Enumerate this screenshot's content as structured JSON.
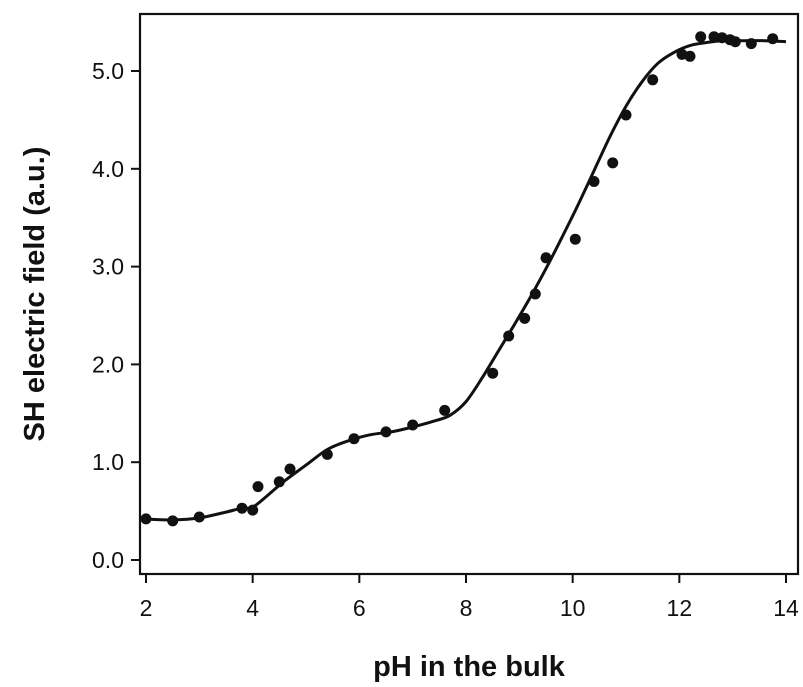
{
  "chart_data": {
    "type": "scatter",
    "title": "",
    "xlabel": "pH in the bulk",
    "ylabel": "SH electric field (a.u.)",
    "xlim": [
      2,
      14
    ],
    "ylim": [
      0.0,
      5.3
    ],
    "xticks": [
      2,
      4,
      6,
      8,
      10,
      12,
      14
    ],
    "yticks": [
      0.0,
      1.0,
      2.0,
      3.0,
      4.0,
      5.0
    ],
    "xtick_labels": [
      "2",
      "4",
      "6",
      "8",
      "10",
      "12",
      "14"
    ],
    "ytick_labels": [
      "0.0",
      "1.0",
      "2.0",
      "3.0",
      "4.0",
      "5.0"
    ],
    "grid": false,
    "legend": "none",
    "series": [
      {
        "kind": "points",
        "x": [
          2.0,
          2.5,
          3.0,
          3.8,
          4.0,
          4.1,
          4.5,
          4.7,
          5.4,
          5.9,
          6.5,
          7.0,
          7.6,
          8.5,
          8.8,
          9.1,
          9.3,
          9.5,
          10.05,
          10.4,
          10.75,
          11.0,
          11.5,
          12.05,
          12.2,
          12.4,
          12.65,
          12.8,
          12.95,
          13.05,
          13.35,
          13.75
        ],
        "y": [
          0.42,
          0.4,
          0.44,
          0.53,
          0.51,
          0.75,
          0.8,
          0.93,
          1.08,
          1.24,
          1.31,
          1.38,
          1.53,
          1.91,
          2.29,
          2.47,
          2.72,
          3.09,
          3.28,
          3.87,
          4.06,
          4.55,
          4.91,
          5.17,
          5.15,
          5.35,
          5.35,
          5.34,
          5.32,
          5.3,
          5.28,
          5.33
        ]
      },
      {
        "kind": "fit-line",
        "x": [
          1.95,
          2.5,
          3.0,
          3.5,
          3.8,
          4.0,
          4.3,
          4.6,
          5.0,
          5.4,
          5.8,
          6.2,
          6.6,
          7.0,
          7.4,
          7.7,
          8.0,
          8.3,
          8.6,
          8.9,
          9.2,
          9.5,
          9.8,
          10.1,
          10.4,
          10.7,
          11.0,
          11.3,
          11.6,
          11.9,
          12.2,
          12.5,
          12.8,
          13.2,
          13.6,
          14.0
        ],
        "y": [
          0.42,
          0.41,
          0.43,
          0.49,
          0.53,
          0.54,
          0.67,
          0.81,
          0.97,
          1.13,
          1.22,
          1.28,
          1.31,
          1.36,
          1.42,
          1.48,
          1.62,
          1.86,
          2.13,
          2.4,
          2.68,
          2.98,
          3.3,
          3.63,
          3.98,
          4.33,
          4.64,
          4.89,
          5.08,
          5.19,
          5.26,
          5.29,
          5.31,
          5.31,
          5.31,
          5.3
        ]
      }
    ]
  }
}
